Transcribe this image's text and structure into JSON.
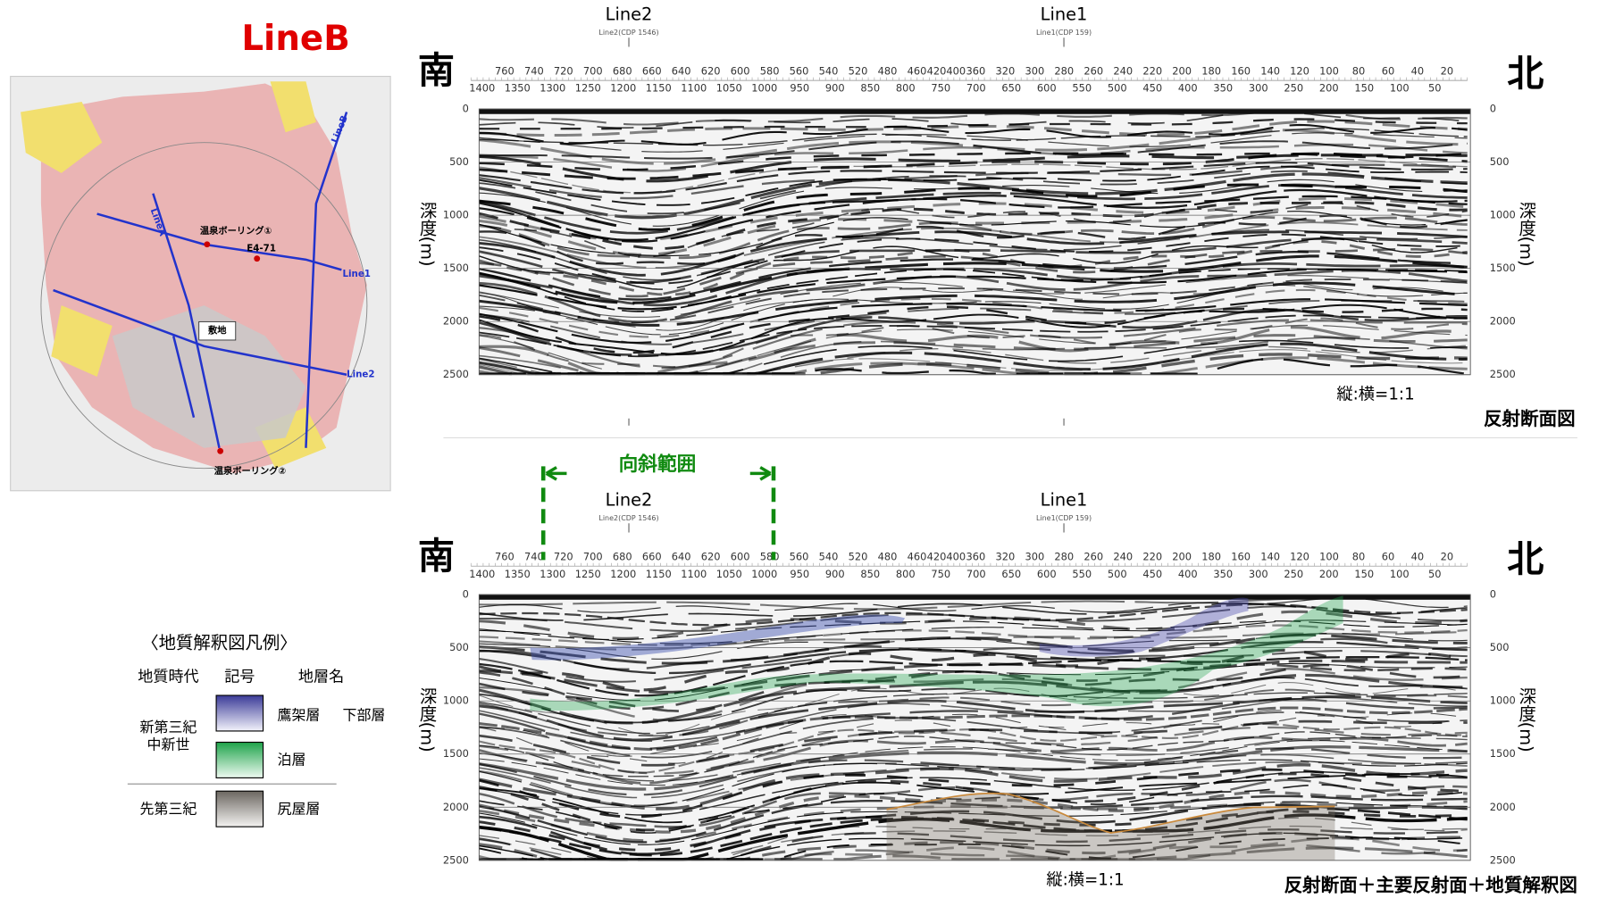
{
  "map": {
    "title": "LineB",
    "labels": {
      "line_a": "LineA",
      "line_b": "LineB",
      "line1": "Line1",
      "line2": "Line2",
      "boring1": "温泉ボーリング①",
      "well": "E4-71",
      "site": "敷地",
      "boring2": "温泉ボーリング②"
    }
  },
  "panels": [
    {
      "line_labels": [
        {
          "name": "Line2",
          "cdp": "Line2(CDP 1546)"
        },
        {
          "name": "Line1",
          "cdp": "Line1(CDP 159)"
        }
      ],
      "south": "南",
      "north": "北",
      "cdp_upper": [
        760,
        740,
        720,
        700,
        680,
        660,
        640,
        620,
        600,
        580,
        560,
        540,
        520,
        480,
        460,
        420400,
        360,
        320,
        300,
        280,
        260,
        240,
        220,
        200,
        180,
        160,
        140,
        120,
        100,
        80,
        60,
        40,
        20
      ],
      "cdp_lower": [
        1400,
        1350,
        1300,
        1250,
        1200,
        1150,
        1100,
        1050,
        1000,
        950,
        900,
        850,
        800,
        750,
        700,
        650,
        600,
        550,
        500,
        450,
        400,
        350,
        300,
        250,
        200,
        150,
        100,
        50
      ],
      "depth_ticks": [
        0,
        500,
        1000,
        1500,
        2000,
        2500
      ],
      "depth_label": "深度(m)",
      "ratio": "縦:横=1:1",
      "caption": "反射断面図"
    },
    {
      "line_labels": [
        {
          "name": "Line2",
          "cdp": "Line2(CDP 1546)"
        },
        {
          "name": "Line1",
          "cdp": "Line1(CDP 159)"
        }
      ],
      "south": "南",
      "north": "北",
      "cdp_upper": [
        760,
        740,
        720,
        700,
        680,
        660,
        640,
        620,
        600,
        580,
        560,
        540,
        520,
        480,
        460,
        420400,
        360,
        320,
        300,
        280,
        260,
        240,
        220,
        200,
        180,
        160,
        140,
        120,
        100,
        80,
        60,
        40,
        20
      ],
      "cdp_lower": [
        1400,
        1350,
        1300,
        1250,
        1200,
        1150,
        1100,
        1050,
        1000,
        950,
        900,
        850,
        800,
        750,
        700,
        650,
        600,
        550,
        500,
        450,
        400,
        350,
        300,
        250,
        200,
        150,
        100,
        50
      ],
      "depth_ticks": [
        0,
        500,
        1000,
        1500,
        2000,
        2500
      ],
      "depth_label": "深度(m)",
      "ratio": "縦:横=1:1",
      "caption": "反射断面＋主要反射面＋地質解釈図",
      "syncline": "向斜範囲"
    }
  ],
  "legend": {
    "title": "〈地質解釈図凡例〉",
    "headers": [
      "地質時代",
      "記号",
      "地層名"
    ],
    "era_neogene": [
      "新第三紀",
      "中新世"
    ],
    "era_pretertiary": "先第三紀",
    "units": [
      {
        "name": "鷹架層",
        "member": "下部層"
      },
      {
        "name": "泊層"
      },
      {
        "name": "尻屋層"
      }
    ]
  }
}
